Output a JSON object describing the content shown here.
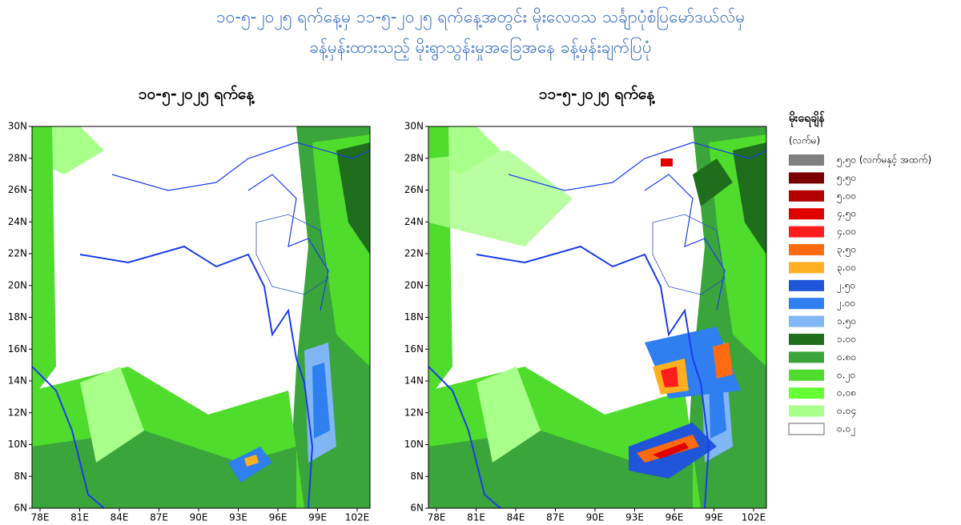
{
  "header": {
    "title_lines": [
      "၁၀-၅-၂၀၂၅ ရက်နေ့မှ ၁၁-၅-၂၀၂၅ ရက်နေ့အတွင်း မိုးလေဝသ သင်္ချာပုံစံပြမော်ဒယ်လ်မှ",
      "ခန့်မှန်းထားသည့် မိုးရွာသွန်းမှုအခြေအနေ ခန့်မှန်းချက်ပြပုံ"
    ]
  },
  "maps": [
    {
      "title": "၁၀-၅-၂၀၂၅ ရက်နေ့"
    },
    {
      "title": "၁၁-၅-၂၀၂၅ ရက်နေ့"
    }
  ],
  "axes": {
    "lat_labels": [
      "30N",
      "28N",
      "26N",
      "24N",
      "22N",
      "20N",
      "18N",
      "16N",
      "14N",
      "12N",
      "10N",
      "8N",
      "6N"
    ],
    "lon_labels": [
      "78E",
      "81E",
      "84E",
      "87E",
      "90E",
      "93E",
      "96E",
      "99E",
      "102E"
    ]
  },
  "legend": {
    "title": "မိုးရေချိန်",
    "unit": "(လက်မ)",
    "items": [
      {
        "label": "၅.၅၀ (လက်မနှင့် အထက်)",
        "color": "#7f7f7f"
      },
      {
        "label": "၅.၅၀",
        "color": "#7a0000"
      },
      {
        "label": "၅.၀၀",
        "color": "#b40000"
      },
      {
        "label": "၄.၅၀",
        "color": "#e00000"
      },
      {
        "label": "၄.၀၀",
        "color": "#ff1c1c"
      },
      {
        "label": "၃.၅၀",
        "color": "#ff6a10"
      },
      {
        "label": "၃.၀၀",
        "color": "#ffb020"
      },
      {
        "label": "၂.၅၀",
        "color": "#1f55d8"
      },
      {
        "label": "၂.၀၀",
        "color": "#2f7ff0"
      },
      {
        "label": "၁.၅၀",
        "color": "#80b6f4"
      },
      {
        "label": "၁.၀၀",
        "color": "#1e6e1e"
      },
      {
        "label": "၀.၈၀",
        "color": "#3aa53a"
      },
      {
        "label": "၀.၂၀",
        "color": "#4fdc2c"
      },
      {
        "label": "၀.၀၈",
        "color": "#66ff33"
      },
      {
        "label": "၀.၀၄",
        "color": "#a8ff8a"
      },
      {
        "label": "၀.၀၂",
        "color": "#ffffff"
      }
    ]
  }
}
